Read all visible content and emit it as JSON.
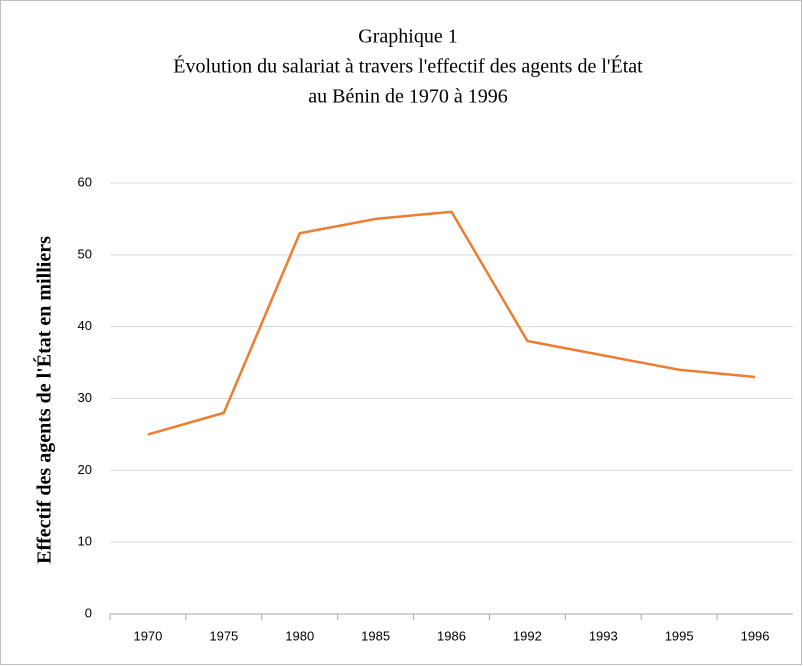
{
  "chart_data": {
    "type": "line",
    "title": [
      "Graphique  1",
      "Évolution  du salariat  à travers  l'effectif  des agents  de l'État",
      "au Bénin  de 1970 à 1996"
    ],
    "y_label": "Effectif  des agents de l'État  en milliers",
    "categories": [
      "1970",
      "1975",
      "1980",
      "1985",
      "1986",
      "1992",
      "1993",
      "1995",
      "1996"
    ],
    "values": [
      25,
      28,
      53,
      55,
      56,
      38,
      36,
      34,
      33
    ],
    "color": "#ed7d31",
    "ylim": [
      0,
      60
    ],
    "yticks": [
      0,
      10,
      20,
      30,
      40,
      50,
      60
    ],
    "grid": true
  }
}
